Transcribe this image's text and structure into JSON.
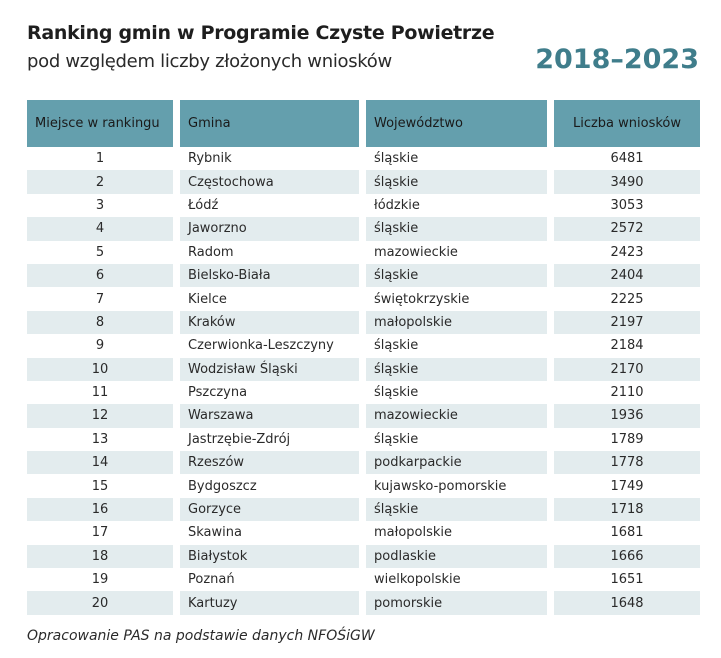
{
  "title": "Ranking gmin w Programie Czyste Powietrze",
  "subtitle": "pod względem liczby złożonych wniosków",
  "years": "2018–2023",
  "footer": "Opracowanie PAS na podstawie danych NFOŚiGW",
  "colors": {
    "header": "#649fad",
    "stripe": "#e3ecee",
    "accent": "#3f7d8b"
  },
  "chart_data": {
    "type": "table",
    "columns": [
      "Miejsce w rankingu",
      "Gmina",
      "Województwo",
      "Liczba wniosków"
    ],
    "rows": [
      [
        "1",
        "Rybnik",
        "śląskie",
        "6481"
      ],
      [
        "2",
        "Częstochowa",
        "śląskie",
        "3490"
      ],
      [
        "3",
        "Łódź",
        "łódzkie",
        "3053"
      ],
      [
        "4",
        "Jaworzno",
        "śląskie",
        "2572"
      ],
      [
        "5",
        "Radom",
        "mazowieckie",
        "2423"
      ],
      [
        "6",
        "Bielsko-Biała",
        "śląskie",
        "2404"
      ],
      [
        "7",
        "Kielce",
        "świętokrzyskie",
        "2225"
      ],
      [
        "8",
        "Kraków",
        "małopolskie",
        "2197"
      ],
      [
        "9",
        "Czerwionka-Leszczyny",
        "śląskie",
        "2184"
      ],
      [
        "10",
        "Wodzisław Śląski",
        "śląskie",
        "2170"
      ],
      [
        "11",
        "Pszczyna",
        "śląskie",
        "2110"
      ],
      [
        "12",
        "Warszawa",
        "mazowieckie",
        "1936"
      ],
      [
        "13",
        "Jastrzębie-Zdrój",
        "śląskie",
        "1789"
      ],
      [
        "14",
        "Rzeszów",
        "podkarpackie",
        "1778"
      ],
      [
        "15",
        "Bydgoszcz",
        "kujawsko-pomorskie",
        "1749"
      ],
      [
        "16",
        "Gorzyce",
        "śląskie",
        "1718"
      ],
      [
        "17",
        "Skawina",
        "małopolskie",
        "1681"
      ],
      [
        "18",
        "Białystok",
        "podlaskie",
        "1666"
      ],
      [
        "19",
        "Poznań",
        "wielkopolskie",
        "1651"
      ],
      [
        "20",
        "Kartuzy",
        "pomorskie",
        "1648"
      ]
    ]
  }
}
